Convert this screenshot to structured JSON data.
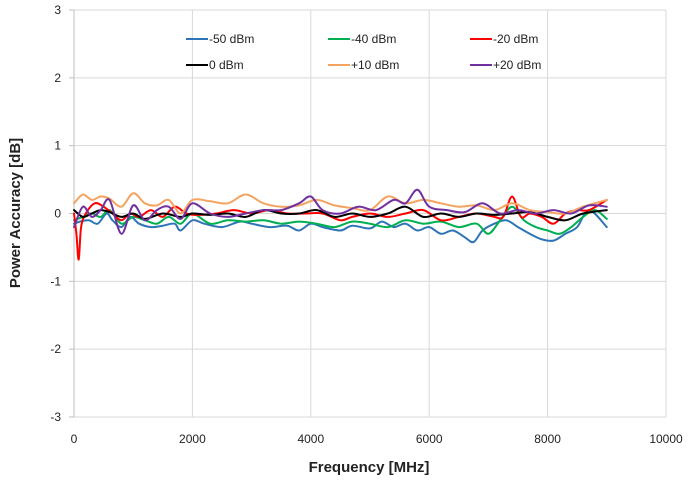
{
  "chart_data": {
    "type": "line",
    "title": "",
    "xlabel": "Frequency [MHz]",
    "ylabel": "Power Accuracy [dB]",
    "xlim": [
      0,
      10000
    ],
    "ylim": [
      -3,
      3
    ],
    "xticks": [
      0,
      2000,
      4000,
      6000,
      8000,
      10000
    ],
    "yticks": [
      -3,
      -2,
      -1,
      0,
      1,
      2,
      3
    ],
    "xtick_labels": [
      "0",
      "2000",
      "4000",
      "6000",
      "8000",
      "10000"
    ],
    "ytick_labels": [
      "-3",
      "-2",
      "-1",
      "0",
      "1",
      "2",
      "3"
    ],
    "grid": true,
    "legend": "top",
    "series": [
      {
        "name": "-50 dBm",
        "color": "#2E75B6",
        "x": [
          0,
          100,
          250,
          400,
          550,
          650,
          800,
          950,
          1100,
          1300,
          1500,
          1700,
          1800,
          2000,
          2200,
          2500,
          2800,
          3000,
          3300,
          3600,
          3800,
          4000,
          4200,
          4500,
          4700,
          5000,
          5200,
          5400,
          5600,
          5800,
          6000,
          6200,
          6400,
          6600,
          6750,
          6900,
          7100,
          7300,
          7500,
          7700,
          7900,
          8100,
          8300,
          8500,
          8700,
          9000
        ],
        "y": [
          -0.15,
          -0.12,
          -0.1,
          -0.15,
          0.0,
          -0.1,
          -0.2,
          -0.05,
          -0.15,
          -0.2,
          -0.18,
          -0.15,
          -0.25,
          -0.1,
          -0.15,
          -0.2,
          -0.12,
          -0.15,
          -0.2,
          -0.18,
          -0.25,
          -0.15,
          -0.2,
          -0.25,
          -0.18,
          -0.22,
          -0.12,
          -0.2,
          -0.15,
          -0.25,
          -0.2,
          -0.3,
          -0.25,
          -0.35,
          -0.42,
          -0.25,
          -0.15,
          -0.1,
          -0.2,
          -0.3,
          -0.38,
          -0.4,
          -0.3,
          -0.2,
          0.05,
          -0.2
        ]
      },
      {
        "name": "-40 dBm",
        "color": "#00B050",
        "x": [
          0,
          150,
          300,
          450,
          600,
          800,
          1000,
          1200,
          1400,
          1600,
          1800,
          2000,
          2300,
          2600,
          2900,
          3200,
          3500,
          3800,
          4100,
          4400,
          4700,
          5000,
          5300,
          5600,
          5900,
          6200,
          6500,
          6800,
          7000,
          7200,
          7400,
          7600,
          7800,
          8000,
          8200,
          8400,
          8600,
          8800,
          9000
        ],
        "y": [
          -0.1,
          -0.05,
          0.0,
          -0.05,
          0.05,
          -0.15,
          -0.05,
          -0.1,
          -0.15,
          -0.05,
          -0.15,
          0.0,
          -0.15,
          -0.1,
          -0.12,
          -0.1,
          -0.15,
          -0.12,
          -0.15,
          -0.2,
          -0.12,
          -0.15,
          -0.2,
          -0.1,
          -0.15,
          -0.12,
          -0.2,
          -0.15,
          -0.3,
          -0.1,
          0.1,
          -0.1,
          -0.2,
          -0.25,
          -0.3,
          -0.2,
          -0.05,
          0.05,
          -0.08
        ]
      },
      {
        "name": "-20 dBm",
        "color": "#FF0000",
        "x": [
          0,
          40,
          80,
          120,
          200,
          350,
          500,
          650,
          800,
          950,
          1100,
          1300,
          1500,
          1700,
          1900,
          2100,
          2400,
          2700,
          3000,
          3300,
          3600,
          3900,
          4200,
          4500,
          4700,
          5000,
          5300,
          5600,
          5900,
          6200,
          6500,
          6800,
          7100,
          7250,
          7400,
          7550,
          7700,
          7900,
          8100,
          8300,
          8500,
          8700,
          9000
        ],
        "y": [
          0.0,
          -0.3,
          -0.68,
          -0.2,
          0.0,
          0.15,
          0.1,
          0.0,
          -0.1,
          0.0,
          -0.05,
          0.05,
          -0.05,
          0.1,
          0.0,
          -0.02,
          0.0,
          0.05,
          0.0,
          0.05,
          0.0,
          0.0,
          0.0,
          -0.1,
          -0.05,
          0.0,
          -0.05,
          0.0,
          0.05,
          -0.1,
          -0.05,
          0.0,
          -0.05,
          -0.05,
          0.25,
          -0.05,
          0.0,
          -0.05,
          -0.15,
          0.0,
          0.05,
          0.05,
          0.2
        ]
      },
      {
        "name": "0 dBm",
        "color": "#000000",
        "x": [
          0,
          150,
          300,
          450,
          600,
          800,
          1000,
          1200,
          1500,
          1800,
          2000,
          2300,
          2600,
          2900,
          3200,
          3500,
          3800,
          4100,
          4400,
          4700,
          5000,
          5300,
          5600,
          5900,
          6200,
          6500,
          6800,
          7100,
          7400,
          7700,
          8000,
          8300,
          8600,
          9000
        ],
        "y": [
          0.05,
          -0.05,
          0.0,
          0.05,
          0.02,
          -0.05,
          0.0,
          -0.08,
          0.0,
          -0.05,
          0.0,
          -0.02,
          0.0,
          -0.05,
          0.05,
          0.0,
          0.0,
          0.05,
          -0.05,
          0.0,
          -0.05,
          0.0,
          0.1,
          -0.05,
          0.0,
          -0.05,
          0.0,
          -0.02,
          0.0,
          0.02,
          -0.05,
          -0.1,
          0.0,
          0.05
        ]
      },
      {
        "name": "+10 dBm",
        "color": "#F4A460",
        "x": [
          0,
          150,
          300,
          450,
          600,
          800,
          1000,
          1200,
          1400,
          1600,
          1800,
          2000,
          2300,
          2600,
          2900,
          3200,
          3500,
          3800,
          4100,
          4400,
          4700,
          5000,
          5300,
          5600,
          5900,
          6200,
          6500,
          6800,
          7100,
          7400,
          7700,
          8000,
          8300,
          8600,
          9000
        ],
        "y": [
          0.15,
          0.28,
          0.2,
          0.25,
          0.22,
          0.1,
          0.3,
          0.15,
          0.12,
          0.2,
          0.0,
          0.2,
          0.18,
          0.15,
          0.28,
          0.15,
          0.1,
          0.12,
          0.2,
          0.12,
          0.08,
          0.05,
          0.25,
          0.15,
          0.2,
          0.15,
          0.1,
          0.12,
          0.05,
          0.15,
          0.05,
          0.02,
          0.0,
          0.1,
          0.2
        ]
      },
      {
        "name": "+20 dBm",
        "color": "#7030A0",
        "x": [
          0,
          150,
          300,
          450,
          600,
          800,
          1000,
          1200,
          1400,
          1600,
          1800,
          2000,
          2300,
          2600,
          2900,
          3200,
          3500,
          3800,
          4000,
          4200,
          4500,
          4800,
          5100,
          5400,
          5600,
          5800,
          6000,
          6300,
          6600,
          6900,
          7200,
          7500,
          7800,
          8100,
          8400,
          8700,
          9000
        ],
        "y": [
          -0.2,
          0.1,
          -0.05,
          0.05,
          0.2,
          -0.3,
          0.12,
          -0.1,
          0.05,
          0.1,
          -0.08,
          0.15,
          0.0,
          -0.05,
          0.0,
          0.05,
          0.05,
          0.15,
          0.25,
          0.05,
          0.0,
          0.1,
          0.05,
          0.2,
          0.15,
          0.35,
          0.1,
          0.05,
          0.02,
          0.15,
          0.0,
          0.05,
          0.0,
          0.05,
          0.0,
          0.12,
          0.1
        ]
      }
    ]
  }
}
